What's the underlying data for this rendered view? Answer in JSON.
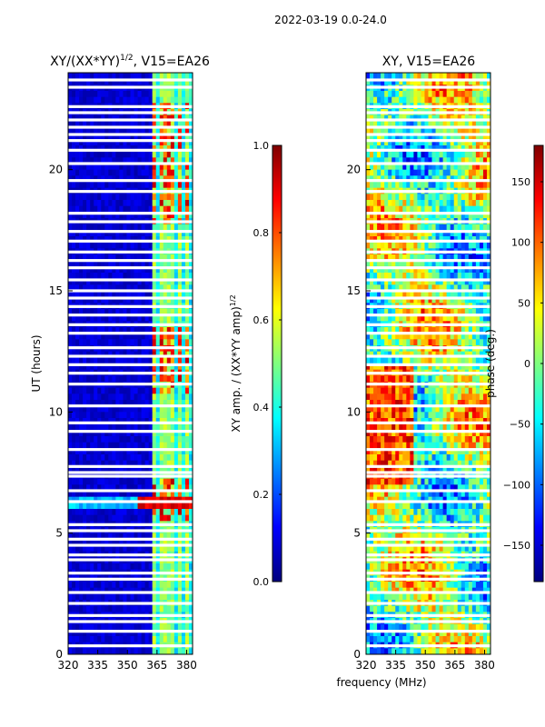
{
  "suptitle": "2022-03-19 0.0-24.0",
  "xlabel_shared": "frequency (MHz)",
  "colors": {
    "jet": [
      "#00007f",
      "#0000ff",
      "#007fff",
      "#00ffff",
      "#7fff7f",
      "#ffff00",
      "#ff7f00",
      "#ff0000",
      "#7f0000"
    ],
    "gap": "#ffffff"
  },
  "chart_data": [
    {
      "type": "heatmap",
      "title_main": "XY/(XX*YY)",
      "title_sup": "1/2",
      "title_tail": ", V15=EA26",
      "xlabel": "",
      "ylabel": "UT (hours)",
      "xlim": [
        320,
        383
      ],
      "ylim": [
        0,
        24
      ],
      "xticks": [
        320,
        335,
        350,
        365,
        380
      ],
      "yticks": [
        0,
        5,
        10,
        15,
        20
      ],
      "quantity": "amplitude",
      "colorbar": {
        "label_main": "XY amp. / (XX*YY amp)",
        "label_sup": "1/2",
        "range": [
          0.0,
          1.0
        ],
        "ticks": [
          "0.0",
          "0.2",
          "0.4",
          "0.6",
          "0.8",
          "1.0"
        ],
        "tick_values": [
          0.0,
          0.2,
          0.4,
          0.6,
          0.8,
          1.0
        ]
      },
      "bright_channels_mhz": [
        364,
        367,
        370,
        373,
        377,
        380
      ],
      "strong_bands_hours": [
        [
          5.5,
          7.3
        ],
        [
          10.8,
          13.4
        ],
        [
          17.8,
          22.8
        ]
      ]
    },
    {
      "type": "heatmap",
      "title_main": "XY, V15=EA26",
      "title_sup": "",
      "title_tail": "",
      "xlabel": "frequency (MHz)",
      "ylabel": "",
      "xlim": [
        320,
        383
      ],
      "ylim": [
        0,
        24
      ],
      "xticks": [
        320,
        335,
        350,
        365,
        380
      ],
      "yticks": [
        0,
        5,
        10,
        15,
        20
      ],
      "quantity": "phase",
      "colorbar": {
        "label_main": "phase (deg.)",
        "label_sup": "",
        "range": [
          -180,
          180
        ],
        "ticks": [
          "−150",
          "−100",
          "−50",
          "0",
          "50",
          "100",
          "150"
        ],
        "tick_values": [
          -150,
          -100,
          -50,
          0,
          50,
          100,
          150
        ]
      }
    }
  ],
  "gap_hours": [
    0.35,
    0.95,
    1.35,
    1.6,
    2.1,
    2.55,
    3.1,
    3.35,
    3.9,
    4.1,
    4.5,
    4.75,
    5.1,
    5.35,
    6.3,
    6.75,
    7.35,
    7.5,
    7.75,
    8.45,
    9.2,
    9.55,
    10.25,
    11.15,
    11.6,
    11.95,
    12.3,
    12.65,
    13.25,
    13.6,
    14.0,
    14.35,
    14.7,
    15.0,
    15.45,
    15.95,
    16.25,
    16.6,
    17.05,
    17.45,
    17.85,
    18.2,
    19.1,
    19.55,
    20.25,
    20.8,
    21.2,
    21.45,
    21.75,
    22.05,
    22.35,
    22.6,
    23.4,
    23.7
  ]
}
